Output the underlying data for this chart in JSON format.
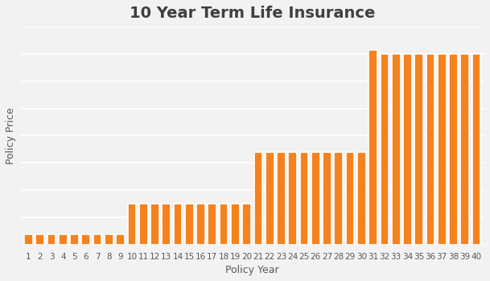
{
  "title": "10 Year Term Life Insurance",
  "xlabel": "Policy Year",
  "ylabel": "Policy Price",
  "bar_color": "#F5821E",
  "bar_edgecolor": "#FFFFFF",
  "background_color": "#F2F2F2",
  "plot_bg_color": "#F2F2F2",
  "grid_color": "#FFFFFF",
  "title_color": "#404040",
  "label_color": "#595959",
  "categories": [
    1,
    2,
    3,
    4,
    5,
    6,
    7,
    8,
    9,
    10,
    11,
    12,
    13,
    14,
    15,
    16,
    17,
    18,
    19,
    20,
    21,
    22,
    23,
    24,
    25,
    26,
    27,
    28,
    29,
    30,
    31,
    32,
    33,
    34,
    35,
    36,
    37,
    38,
    39,
    40
  ],
  "values": [
    5,
    5,
    5,
    5,
    5,
    5,
    5,
    5,
    5,
    20,
    20,
    20,
    20,
    20,
    20,
    20,
    20,
    20,
    20,
    20,
    45,
    45,
    45,
    45,
    45,
    45,
    45,
    45,
    45,
    45,
    95,
    93,
    93,
    93,
    93,
    93,
    93,
    93,
    93,
    93
  ],
  "tick_labels": [
    "1",
    "2",
    "3",
    "4",
    "5",
    "6",
    "7",
    "8",
    "9",
    "10",
    "11",
    "12",
    "13",
    "14",
    "15",
    "16",
    "17",
    "18",
    "19",
    "20",
    "21",
    "22",
    "23",
    "24",
    "25",
    "26",
    "27",
    "28",
    "29",
    "30",
    "31",
    "32",
    "33",
    "34",
    "35",
    "36",
    "37",
    "38",
    "39",
    "40"
  ],
  "title_fontsize": 14,
  "axis_fontsize": 9,
  "tick_fontsize": 7.5,
  "figsize": [
    6.09,
    3.49
  ],
  "dpi": 100,
  "bar_width": 0.75,
  "ylim_factor": 1.12
}
